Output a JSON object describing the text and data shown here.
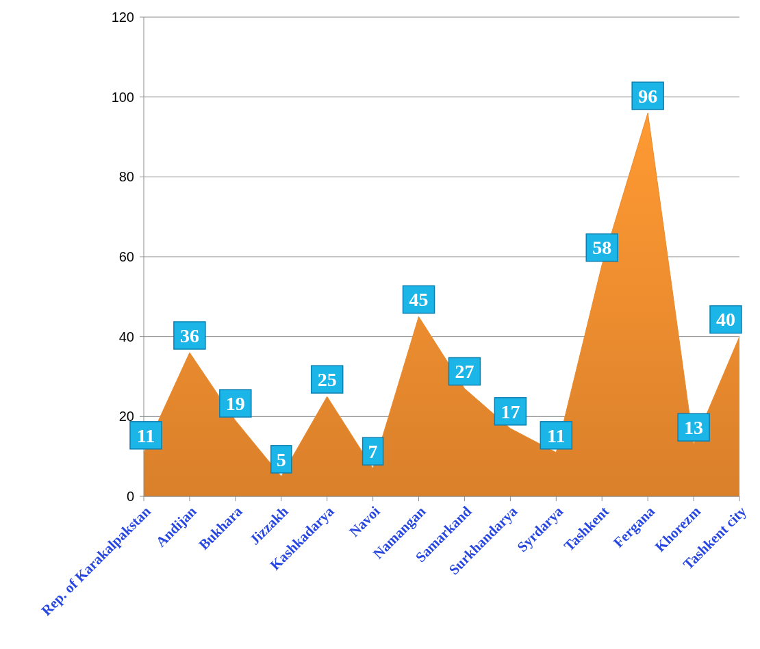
{
  "chart_data": {
    "type": "area",
    "categories": [
      "Rep. of Karakalpakstan",
      "Andijan",
      "Bukhara",
      "Jizzakh",
      "Kashkadarya",
      "Navoi",
      "Namangan",
      "Samarkand",
      "Surkhandarya",
      "Syrdarya",
      "Tashkent",
      "Fergana",
      "Khorezm",
      "Tashkent city"
    ],
    "series": [
      {
        "color": "#ea8a2e",
        "values": [
          11,
          36,
          19,
          5,
          25,
          7,
          45,
          27,
          17,
          11,
          58,
          96,
          13,
          40
        ]
      }
    ],
    "ylim": [
      0,
      120
    ],
    "yticks": [
      0,
      20,
      40,
      60,
      80,
      100,
      120
    ],
    "grid": "y",
    "data_labels": true
  }
}
